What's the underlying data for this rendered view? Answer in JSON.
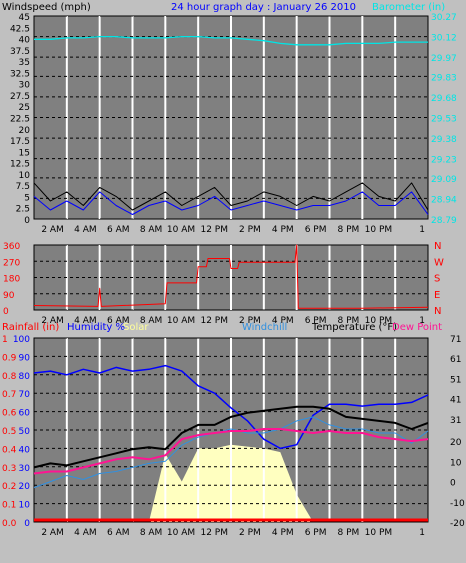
{
  "title": "24 hour graph day : January 26 2010",
  "colors": {
    "background": "#c0c0c0",
    "plot": "#808080",
    "grid": "#ffffff",
    "title": "#0000ff",
    "wind": "#000000",
    "gust": "#0000ff",
    "barometer": "#00e5e5",
    "direction": "#ff0000",
    "temperature": "#000000",
    "dewpoint": "#ff1493",
    "windchill": "#3090e0",
    "humidity": "#0000ff",
    "solar": "#ffffc0",
    "rain": "#ff0000"
  },
  "x_ticks": [
    "2 AM",
    "4 AM",
    "6 AM",
    "8 AM",
    "10 AM",
    "12 PM",
    "2 PM",
    "4 PM",
    "6 PM",
    "8 PM",
    "10 PM",
    "1"
  ],
  "chart_data": [
    {
      "type": "line",
      "name": "wind-barometer",
      "ylabel": "Windspeed (mph)",
      "y2label": "Barometer (in)",
      "yticks": [
        "0",
        "2.5",
        "5",
        "7.5",
        "10",
        "12.5",
        "15",
        "17.5",
        "20",
        "22.5",
        "25",
        "27.5",
        "30",
        "32.5",
        "35",
        "37.5",
        "40",
        "42.5",
        "45"
      ],
      "ylim": [
        0,
        45
      ],
      "y2ticks": [
        "28.79",
        "28.94",
        "29.09",
        "29.23",
        "29.38",
        "29.53",
        "29.68",
        "29.83",
        "29.97",
        "30.12",
        "30.27"
      ],
      "y2lim": [
        28.79,
        30.27
      ],
      "x": [
        0,
        1,
        2,
        3,
        4,
        5,
        6,
        7,
        8,
        9,
        10,
        11,
        12,
        13,
        14,
        15,
        16,
        17,
        18,
        19,
        20,
        21,
        22,
        23,
        24
      ],
      "series": [
        {
          "role": "barometer",
          "values": [
            30.1,
            30.1,
            30.11,
            30.11,
            30.12,
            30.12,
            30.11,
            30.11,
            30.11,
            30.12,
            30.12,
            30.11,
            30.11,
            30.1,
            30.09,
            30.07,
            30.06,
            30.06,
            30.06,
            30.07,
            30.07,
            30.07,
            30.08,
            30.08,
            30.08
          ]
        },
        {
          "role": "wind",
          "values": [
            8,
            4,
            6,
            3,
            7,
            5,
            2,
            4,
            6,
            3,
            5,
            7,
            3,
            4,
            6,
            5,
            3,
            5,
            4,
            6,
            8,
            5,
            4,
            8,
            2
          ]
        },
        {
          "role": "gust",
          "values": [
            5,
            2,
            4,
            2,
            6,
            3,
            1,
            3,
            4,
            2,
            3,
            5,
            2,
            3,
            4,
            3,
            2,
            3,
            3,
            4,
            6,
            3,
            3,
            6,
            1
          ]
        }
      ]
    },
    {
      "type": "line",
      "name": "wind-direction",
      "yticks": [
        "0",
        "90",
        "180",
        "270",
        "360"
      ],
      "ylim": [
        0,
        360
      ],
      "compass": [
        "N",
        "W",
        "S",
        "E",
        "N"
      ],
      "x": [
        0,
        3.9,
        4.0,
        4.1,
        8.0,
        8.1,
        9.9,
        10.0,
        10.5,
        10.6,
        11.9,
        12.0,
        12.4,
        12.5,
        15.9,
        16.0,
        16.1,
        20,
        24
      ],
      "values": [
        25,
        20,
        120,
        20,
        35,
        150,
        150,
        240,
        240,
        285,
        285,
        230,
        230,
        265,
        265,
        360,
        10,
        10,
        15
      ]
    },
    {
      "type": "line",
      "name": "temperature-humidity",
      "labels": {
        "rain": "Rainfall (in)",
        "humidity": "Humidity %",
        "solar": "Solar",
        "windchill": "Windchill",
        "temperature": "Temperature (°F)",
        "dewpoint": "Dew Point"
      },
      "yticks_left_red": [
        "0.0",
        "0.1",
        "0.2",
        "0.3",
        "0.4",
        "0.5",
        "0.6",
        "0.7",
        "0.8",
        "0.9",
        "1"
      ],
      "yticks_left_blue": [
        "0",
        "10",
        "20",
        "30",
        "40",
        "50",
        "60",
        "70",
        "80",
        "90",
        "100"
      ],
      "ylim_left": [
        0,
        100
      ],
      "yticks_right": [
        "-20",
        "-10",
        "0",
        "10",
        "20",
        "31",
        "41",
        "51",
        "61",
        "71"
      ],
      "ylim_right": [
        -20,
        71
      ],
      "x": [
        0,
        1,
        2,
        3,
        4,
        5,
        6,
        7,
        8,
        9,
        10,
        11,
        12,
        13,
        14,
        15,
        16,
        17,
        18,
        19,
        20,
        21,
        22,
        23,
        24
      ],
      "series": [
        {
          "role": "humidity",
          "values": [
            81,
            82,
            80,
            83,
            81,
            84,
            82,
            83,
            85,
            82,
            74,
            70,
            62,
            55,
            45,
            40,
            42,
            58,
            64,
            64,
            63,
            64,
            64,
            65,
            69
          ]
        },
        {
          "role": "temperature",
          "values": [
            7,
            9,
            8,
            10,
            12,
            14,
            16,
            17,
            16,
            24,
            28,
            28,
            32,
            34,
            35,
            36,
            37,
            37,
            36,
            32,
            31,
            30,
            29,
            26,
            29
          ]
        },
        {
          "role": "dewpoint",
          "values": [
            4,
            5,
            5,
            7,
            9,
            11,
            12,
            11,
            13,
            21,
            23,
            24,
            25,
            25,
            26,
            26,
            25,
            24,
            25,
            24,
            24,
            22,
            21,
            20,
            21
          ]
        },
        {
          "role": "windchill",
          "values": [
            -3,
            0,
            3,
            1,
            4,
            5,
            7,
            9,
            10,
            18,
            22,
            24,
            26,
            24,
            24,
            26,
            30,
            32,
            28,
            26,
            26,
            24,
            24,
            19,
            25
          ]
        },
        {
          "role": "solar",
          "values": [
            0,
            0,
            0,
            0,
            0,
            0,
            0,
            0,
            37,
            22,
            40,
            40,
            42,
            41,
            40,
            38,
            15,
            0,
            0,
            0,
            0,
            0,
            0,
            0,
            0
          ]
        },
        {
          "role": "rain",
          "values": [
            0,
            0,
            0,
            0,
            0,
            0,
            0,
            0,
            0,
            0,
            0,
            0,
            0,
            0,
            0,
            0,
            0,
            0,
            0,
            0,
            0,
            0,
            0,
            0,
            0
          ]
        }
      ]
    }
  ]
}
